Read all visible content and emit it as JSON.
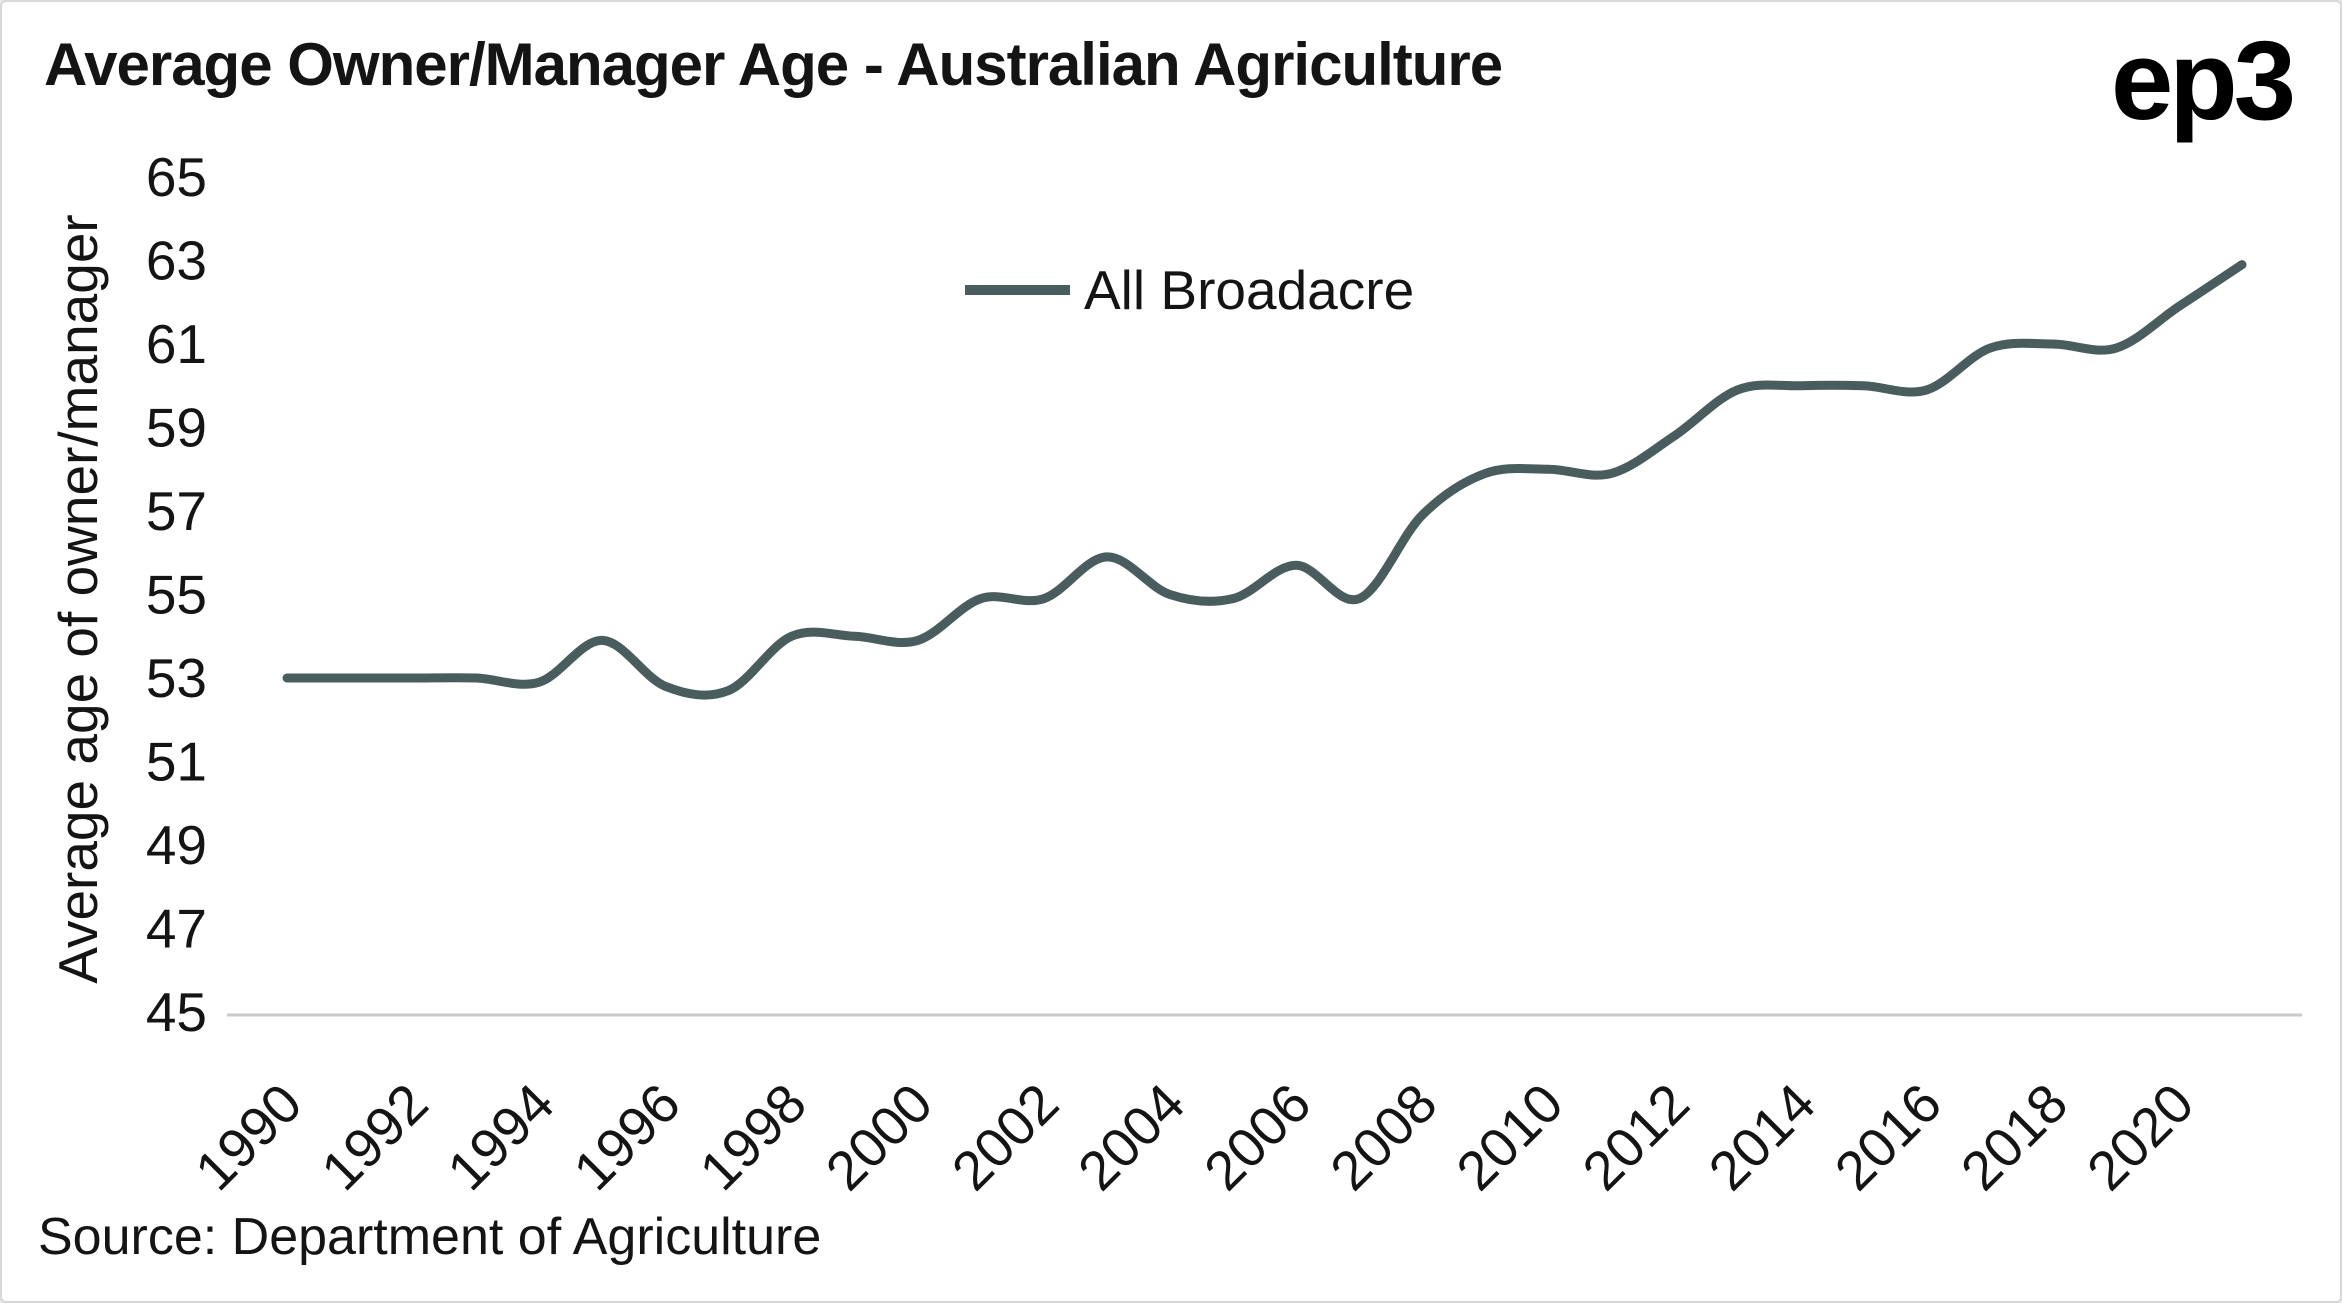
{
  "header": {
    "logo": "ep3"
  },
  "footer": {
    "source": "Source: Department of Agriculture"
  },
  "chart_data": {
    "type": "line",
    "title": "Average Owner/Manager Age - Australian Agriculture",
    "xlabel": "",
    "ylabel": "Average age of owner/manager",
    "ylim": [
      45,
      65
    ],
    "ytick_step": 2,
    "xticks": [
      1990,
      1992,
      1994,
      1996,
      1998,
      2000,
      2002,
      2004,
      2006,
      2008,
      2010,
      2012,
      2014,
      2016,
      2018,
      2020
    ],
    "xlim": [
      1990,
      2021
    ],
    "grid": false,
    "legend": {
      "label": "All Broadacre",
      "position": "top-center"
    },
    "line_color": "#4a5d5e",
    "axis_color": "#c9c9c9",
    "text_color": "#141414",
    "series": [
      {
        "name": "All Broadacre",
        "x": [
          1990,
          1991,
          1992,
          1993,
          1994,
          1995,
          1996,
          1997,
          1998,
          1999,
          2000,
          2001,
          2002,
          2003,
          2004,
          2005,
          2006,
          2007,
          2008,
          2009,
          2010,
          2011,
          2012,
          2013,
          2014,
          2015,
          2016,
          2017,
          2018,
          2019,
          2020,
          2021
        ],
        "values": [
          53.0,
          53.0,
          53.0,
          53.0,
          52.9,
          53.9,
          52.8,
          52.7,
          54.0,
          54.0,
          53.9,
          54.9,
          54.9,
          55.9,
          55.0,
          54.9,
          55.7,
          54.9,
          56.9,
          57.9,
          58.0,
          57.9,
          58.8,
          59.9,
          60.0,
          60.0,
          59.9,
          60.9,
          61.0,
          60.9,
          61.9,
          62.9
        ]
      }
    ]
  }
}
